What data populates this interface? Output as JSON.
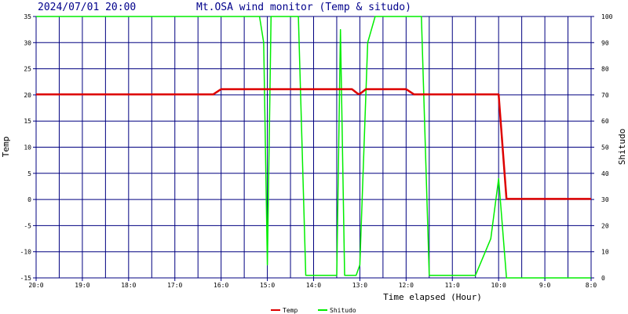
{
  "header": {
    "timestamp": "2024/07/01 20:00",
    "title": "Mt.OSA wind monitor (Temp & situdo)"
  },
  "chart_data": {
    "type": "line",
    "title": "Mt.OSA wind monitor (Temp & situdo)",
    "xlabel": "Time elapsed (Hour)",
    "ylabel_left": "Temp",
    "ylabel_right": "Shitudo",
    "x_tick_labels": [
      "20:0",
      "19:0",
      "18:0",
      "17:0",
      "16:0",
      "15:0",
      "14:0",
      "13:0",
      "12:0",
      "11:0",
      "10:0",
      "9:0",
      "8:0"
    ],
    "x_range_hours_elapsed": [
      0,
      12
    ],
    "y_left_range": [
      -15,
      35
    ],
    "y_left_ticks": [
      -15,
      -10,
      -5,
      0,
      5,
      10,
      15,
      20,
      25,
      30,
      35
    ],
    "y_right_range": [
      0,
      100
    ],
    "y_right_ticks": [
      0,
      10,
      20,
      30,
      40,
      50,
      60,
      70,
      80,
      90,
      100
    ],
    "grid": true,
    "legend_position": "bottom-center",
    "colors": {
      "grid": "#000080",
      "title": "#00008b",
      "temp": "#dd0000",
      "shitudo": "#00ee00"
    },
    "series": [
      {
        "name": "Temp",
        "axis": "left",
        "x": [
          0,
          3.83,
          4.0,
          6.83,
          6.96,
          7.0,
          7.13,
          8.0,
          8.17,
          10.0,
          10.17,
          10.83,
          12.0
        ],
        "y": [
          20.1,
          20.1,
          21.1,
          21.1,
          20.2,
          20.2,
          21.1,
          21.1,
          20.1,
          20.1,
          0.1,
          0.1,
          0.1
        ]
      },
      {
        "name": "Shitudo",
        "axis": "right",
        "x": [
          0,
          4.83,
          4.92,
          5.0,
          5.08,
          5.67,
          5.83,
          6.0,
          6.25,
          6.5,
          6.58,
          6.67,
          6.75,
          6.92,
          7.0,
          7.17,
          7.33,
          8.33,
          8.5,
          9.5,
          9.83,
          10.0,
          10.17,
          12.0
        ],
        "y": [
          100,
          100,
          90,
          5,
          100,
          100,
          1,
          1,
          1,
          1,
          95,
          1,
          1,
          1,
          5,
          90,
          100,
          100,
          1,
          1,
          15,
          38,
          0,
          0
        ]
      }
    ]
  }
}
